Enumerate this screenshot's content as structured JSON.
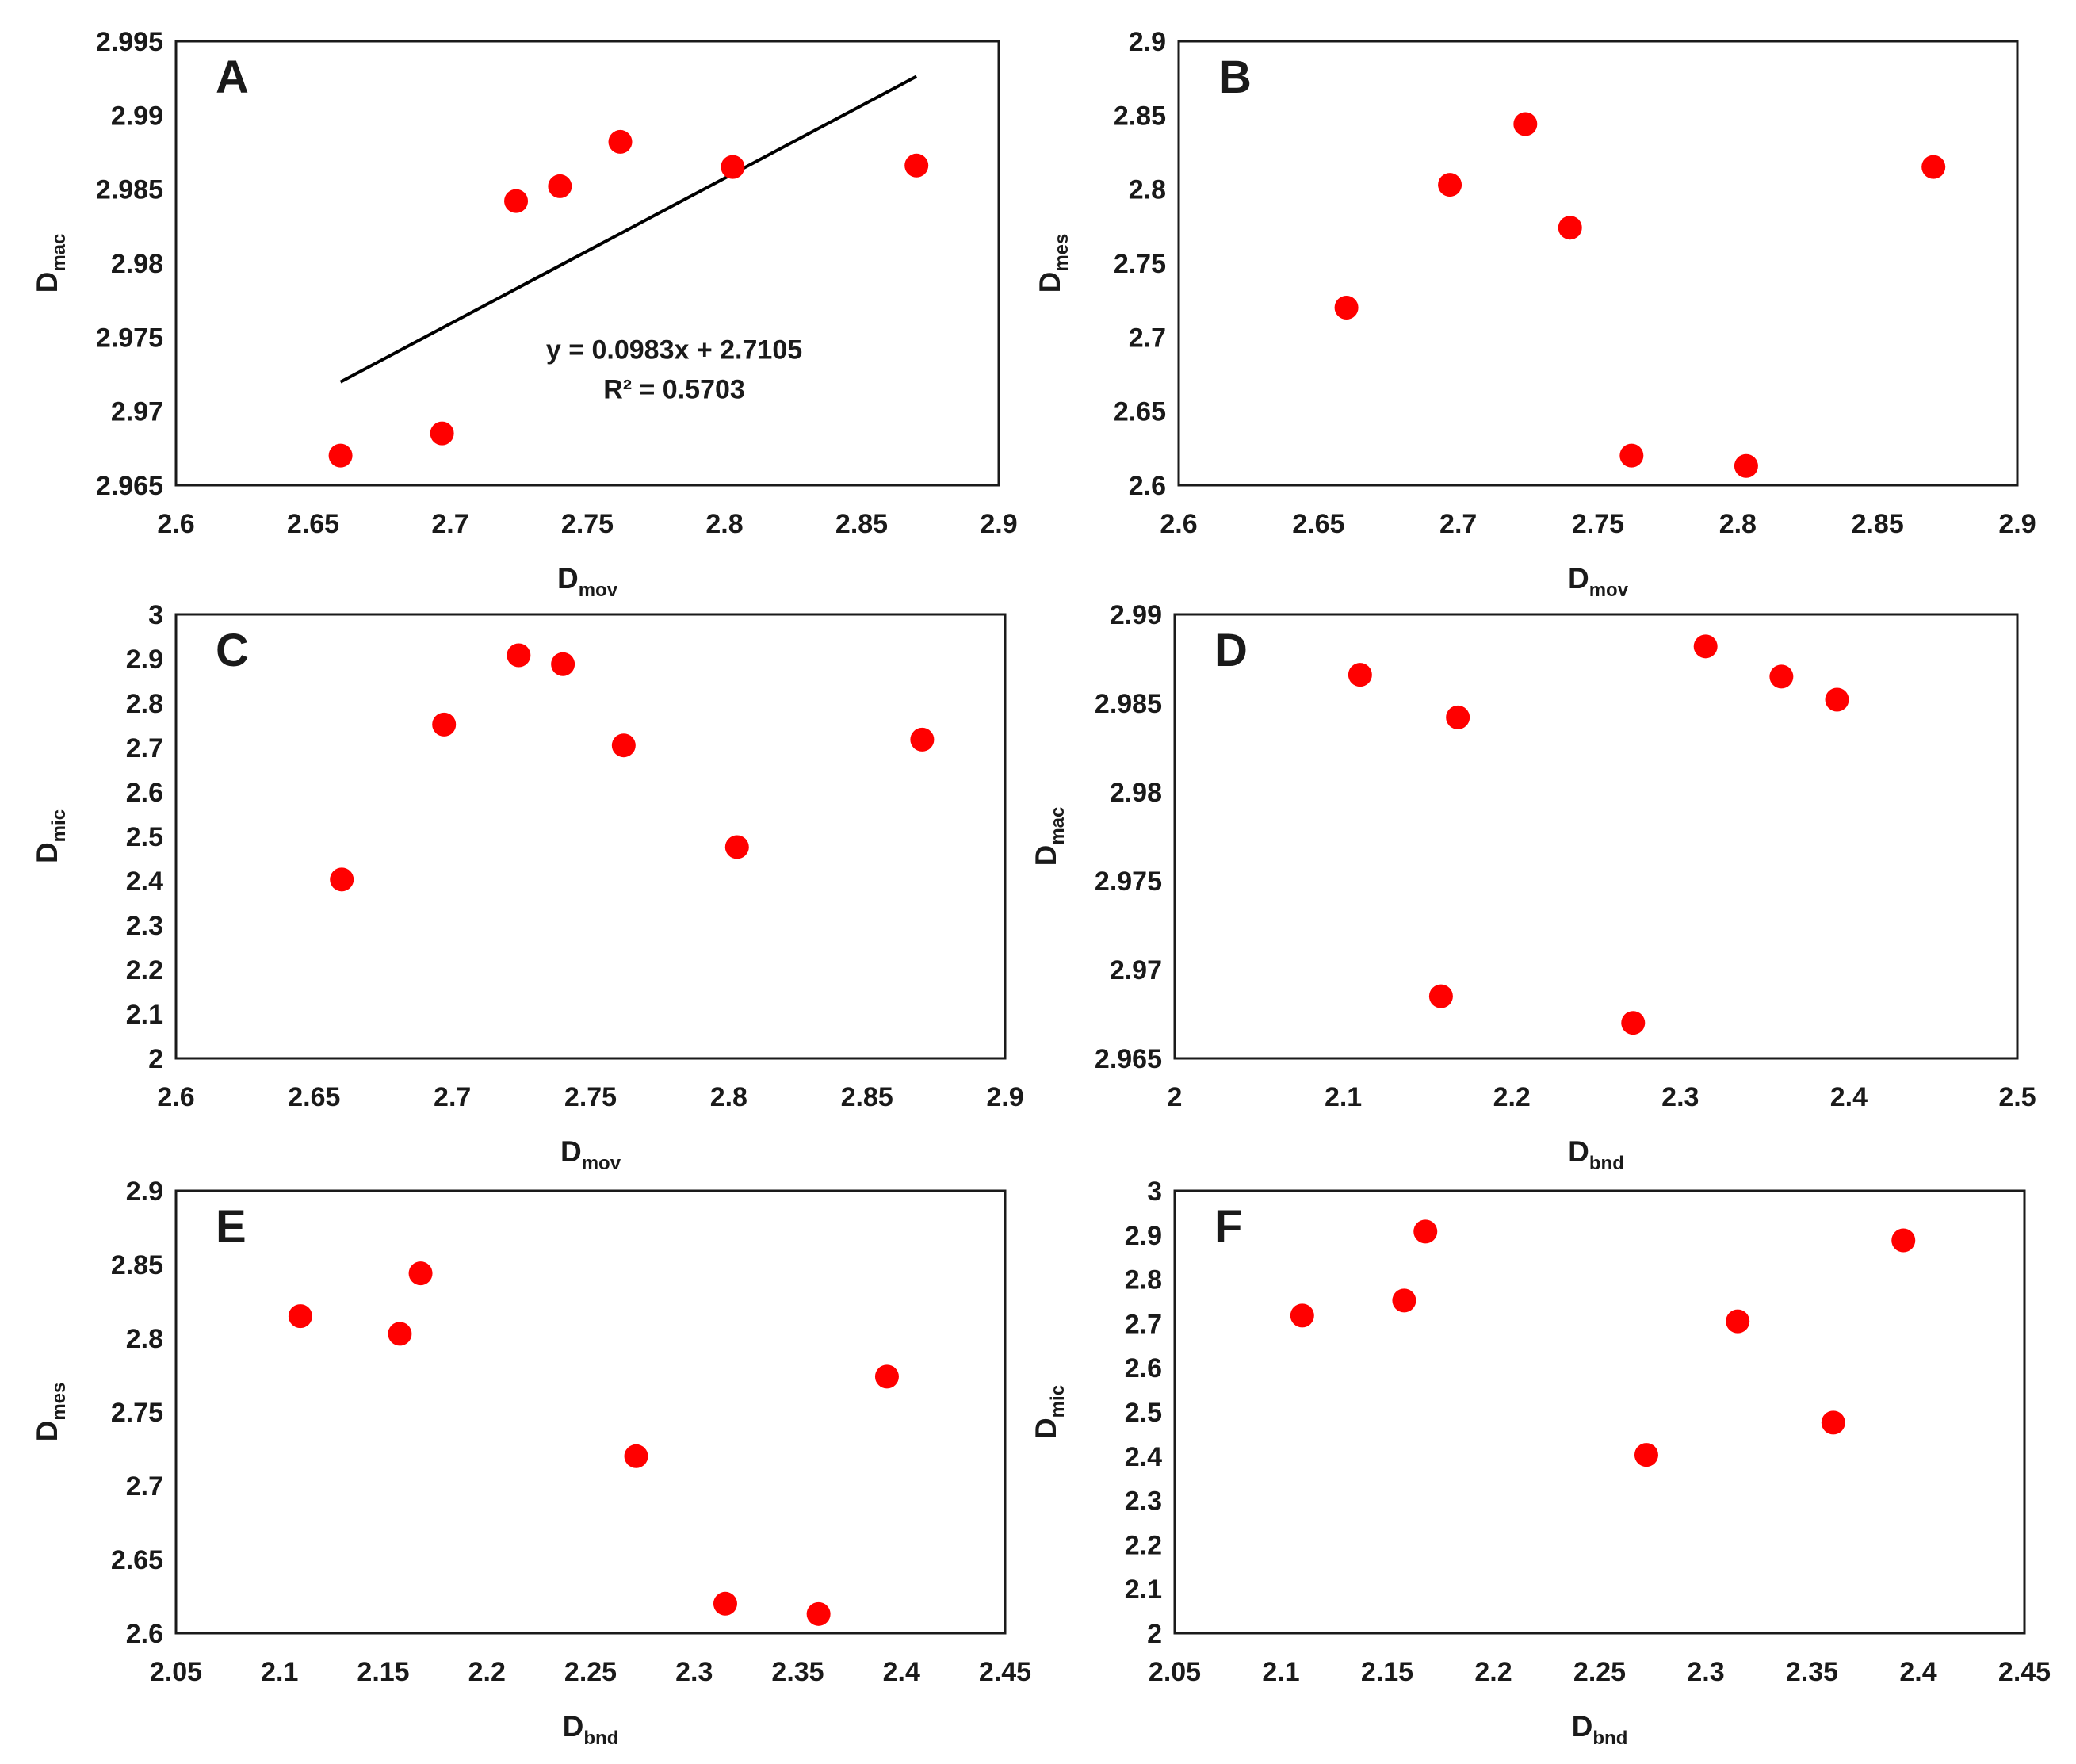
{
  "chart_data": [
    {
      "panel": "A",
      "type": "scatter",
      "xlabel": {
        "main": "D",
        "sub": "mov"
      },
      "ylabel": {
        "main": "D",
        "sub": "mac"
      },
      "xlim": [
        2.6,
        2.9
      ],
      "ylim": [
        2.965,
        2.995
      ],
      "xticks": [
        "2.6",
        "2.65",
        "2.7",
        "2.75",
        "2.8",
        "2.85",
        "2.9"
      ],
      "yticks": [
        "2.965",
        "2.97",
        "2.975",
        "2.98",
        "2.985",
        "2.99",
        "2.995"
      ],
      "points": [
        [
          2.66,
          2.967
        ],
        [
          2.697,
          2.9685
        ],
        [
          2.724,
          2.9842
        ],
        [
          2.74,
          2.9852
        ],
        [
          2.762,
          2.9882
        ],
        [
          2.803,
          2.9865
        ],
        [
          2.87,
          2.9866
        ]
      ],
      "trendline": {
        "slope": 0.0983,
        "intercept": 2.7105,
        "x_range": [
          2.66,
          2.87
        ]
      },
      "equation": "y = 0.0983x + 2.7105",
      "r_squared": "R² = 0.5703"
    },
    {
      "panel": "B",
      "type": "scatter",
      "xlabel": {
        "main": "D",
        "sub": "mov"
      },
      "ylabel": {
        "main": "D",
        "sub": "mes"
      },
      "xlim": [
        2.6,
        2.9
      ],
      "ylim": [
        2.6,
        2.9
      ],
      "xticks": [
        "2.6",
        "2.65",
        "2.7",
        "2.75",
        "2.8",
        "2.85",
        "2.9"
      ],
      "yticks": [
        "2.6",
        "2.65",
        "2.7",
        "2.75",
        "2.8",
        "2.85",
        "2.9"
      ],
      "points": [
        [
          2.66,
          2.72
        ],
        [
          2.697,
          2.803
        ],
        [
          2.724,
          2.844
        ],
        [
          2.74,
          2.774
        ],
        [
          2.762,
          2.62
        ],
        [
          2.803,
          2.613
        ],
        [
          2.87,
          2.815
        ]
      ]
    },
    {
      "panel": "C",
      "type": "scatter",
      "xlabel": {
        "main": "D",
        "sub": "mov"
      },
      "ylabel": {
        "main": "D",
        "sub": "mic"
      },
      "xlim": [
        2.6,
        2.9
      ],
      "ylim": [
        2.0,
        3.0
      ],
      "xticks": [
        "2.6",
        "2.65",
        "2.7",
        "2.75",
        "2.8",
        "2.85",
        "2.9"
      ],
      "yticks": [
        "2",
        "2.1",
        "2.2",
        "2.3",
        "2.4",
        "2.5",
        "2.6",
        "2.7",
        "2.8",
        "2.9",
        "3"
      ],
      "points": [
        [
          2.66,
          2.403
        ],
        [
          2.697,
          2.752
        ],
        [
          2.724,
          2.908
        ],
        [
          2.74,
          2.888
        ],
        [
          2.762,
          2.705
        ],
        [
          2.803,
          2.476
        ],
        [
          2.87,
          2.718
        ]
      ]
    },
    {
      "panel": "D",
      "type": "scatter",
      "xlabel": {
        "main": "D",
        "sub": "bnd"
      },
      "ylabel": {
        "main": "D",
        "sub": "mac"
      },
      "xlim": [
        2.0,
        2.5
      ],
      "ylim": [
        2.965,
        2.99
      ],
      "xticks": [
        "2",
        "2.1",
        "2.2",
        "2.3",
        "2.4",
        "2.5"
      ],
      "yticks": [
        "2.965",
        "2.97",
        "2.975",
        "2.98",
        "2.985",
        "2.99"
      ],
      "points": [
        [
          2.11,
          2.9866
        ],
        [
          2.158,
          2.9685
        ],
        [
          2.168,
          2.9842
        ],
        [
          2.272,
          2.967
        ],
        [
          2.315,
          2.9882
        ],
        [
          2.36,
          2.9865
        ],
        [
          2.393,
          2.9852
        ]
      ]
    },
    {
      "panel": "E",
      "type": "scatter",
      "xlabel": {
        "main": "D",
        "sub": "bnd"
      },
      "ylabel": {
        "main": "D",
        "sub": "mes"
      },
      "xlim": [
        2.05,
        2.45
      ],
      "ylim": [
        2.6,
        2.9
      ],
      "xticks": [
        "2.05",
        "2.1",
        "2.15",
        "2.2",
        "2.25",
        "2.3",
        "2.35",
        "2.4",
        "2.45"
      ],
      "yticks": [
        "2.6",
        "2.65",
        "2.7",
        "2.75",
        "2.8",
        "2.85",
        "2.9"
      ],
      "points": [
        [
          2.11,
          2.815
        ],
        [
          2.158,
          2.803
        ],
        [
          2.168,
          2.844
        ],
        [
          2.272,
          2.72
        ],
        [
          2.315,
          2.62
        ],
        [
          2.36,
          2.613
        ],
        [
          2.393,
          2.774
        ]
      ]
    },
    {
      "panel": "F",
      "type": "scatter",
      "xlabel": {
        "main": "D",
        "sub": "bnd"
      },
      "ylabel": {
        "main": "D",
        "sub": "mic"
      },
      "xlim": [
        2.05,
        2.45
      ],
      "ylim": [
        2.0,
        3.0
      ],
      "xticks": [
        "2.05",
        "2.1",
        "2.15",
        "2.2",
        "2.25",
        "2.3",
        "2.35",
        "2.4",
        "2.45"
      ],
      "yticks": [
        "2",
        "2.1",
        "2.2",
        "2.3",
        "2.4",
        "2.5",
        "2.6",
        "2.7",
        "2.8",
        "2.9",
        "3"
      ],
      "points": [
        [
          2.11,
          2.718
        ],
        [
          2.158,
          2.752
        ],
        [
          2.168,
          2.908
        ],
        [
          2.272,
          2.403
        ],
        [
          2.315,
          2.705
        ],
        [
          2.36,
          2.476
        ],
        [
          2.393,
          2.888
        ]
      ]
    }
  ],
  "colors": {
    "point": "#ff0000",
    "axis": "#1a1a1a",
    "trendline": "#000000"
  }
}
